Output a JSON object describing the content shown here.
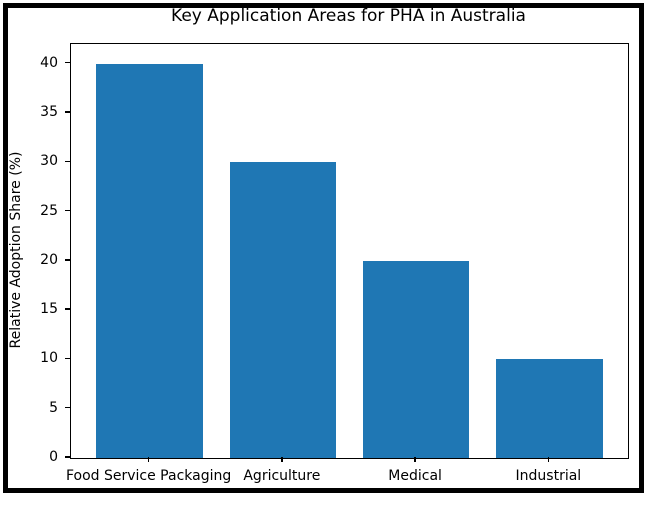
{
  "figure": {
    "background_color": "#ffffff",
    "border_color": "#000000",
    "axis_color": "#000000",
    "text_color": "#000000"
  },
  "chart_data": {
    "type": "bar",
    "title": "Key Application Areas for PHA in Australia",
    "xlabel": "",
    "ylabel": "Relative Adoption Share (%)",
    "categories": [
      "Food Service Packaging",
      "Agriculture",
      "Medical",
      "Industrial"
    ],
    "values": [
      40,
      30,
      20,
      10
    ],
    "yticks": [
      0,
      5,
      10,
      15,
      20,
      25,
      30,
      35,
      40
    ],
    "ylim": [
      0,
      42
    ],
    "bar_color": "#1f77b4",
    "grid": false,
    "legend": "none",
    "plot_background": "#ffffff"
  }
}
